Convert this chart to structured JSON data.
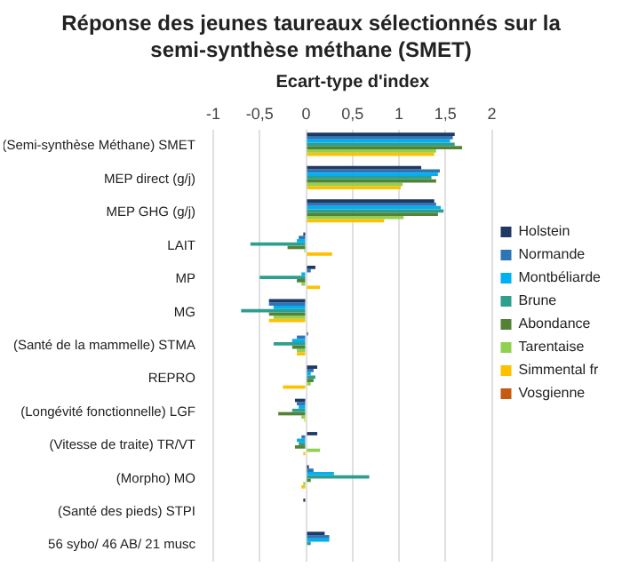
{
  "chart_data": {
    "type": "bar",
    "orientation": "horizontal",
    "title": "Réponse des jeunes taureaux sélectionnés sur la semi-synthèse méthane (SMET)",
    "xlabel": "Ecart-type d'index",
    "categories": [
      "(Semi-synthèse Méthane) SMET",
      "MEP direct (g/j)",
      "MEP GHG (g/j)",
      "LAIT",
      "MP",
      "MG",
      "(Santé de la mammelle) STMA",
      "REPRO",
      "(Longévité fonctionnelle) LGF",
      "(Vitesse de traite) TR/VT",
      "(Morpho) MO",
      "(Santé des pieds) STPI",
      "56 sybo/ 46 AB/ 21 musc"
    ],
    "xlim": [
      -1,
      2
    ],
    "xticks": [
      -1,
      {
        "value": -0.5,
        "label": "-0,5"
      },
      0,
      {
        "value": 0.5,
        "label": "0,5"
      },
      1,
      {
        "value": 1.5,
        "label": "1,5"
      },
      2
    ],
    "grid": "x",
    "legend": "right",
    "series": [
      {
        "name": "Holstein",
        "color": "#1f3864",
        "values": [
          1.6,
          1.24,
          1.38,
          -0.03,
          0.1,
          -0.4,
          0.02,
          0.12,
          -0.12,
          0.12,
          0.03,
          -0.03,
          0.2
        ]
      },
      {
        "name": "Normande",
        "color": "#2e75b6",
        "values": [
          1.58,
          1.44,
          1.4,
          -0.08,
          0.05,
          -0.4,
          -0.1,
          0.08,
          -0.1,
          -0.05,
          0.08,
          null,
          0.25
        ]
      },
      {
        "name": "Montbéliarde",
        "color": "#00b0f0",
        "values": [
          1.55,
          1.42,
          1.45,
          -0.1,
          -0.05,
          -0.35,
          -0.15,
          0.05,
          -0.08,
          -0.1,
          0.3,
          null,
          0.25
        ]
      },
      {
        "name": "Brune",
        "color": "#2e9e8f",
        "values": [
          1.6,
          1.35,
          1.48,
          -0.6,
          -0.5,
          -0.7,
          -0.35,
          0.1,
          -0.15,
          -0.08,
          0.68,
          null,
          0.05
        ]
      },
      {
        "name": "Abondance",
        "color": "#548235",
        "values": [
          1.68,
          1.4,
          1.42,
          -0.2,
          -0.1,
          -0.4,
          -0.15,
          0.08,
          -0.3,
          -0.12,
          0.05,
          null,
          null
        ]
      },
      {
        "name": "Tarentaise",
        "color": "#92d050",
        "values": [
          1.4,
          1.04,
          1.05,
          -0.02,
          -0.05,
          -0.35,
          -0.1,
          0.05,
          -0.05,
          0.15,
          -0.03,
          null,
          null
        ]
      },
      {
        "name": "Simmental fr",
        "color": "#ffc000",
        "values": [
          1.38,
          1.02,
          0.84,
          0.28,
          0.15,
          -0.4,
          -0.1,
          -0.25,
          -0.02,
          -0.03,
          -0.05,
          null,
          null
        ]
      },
      {
        "name": "Vosgienne",
        "color": "#c55a11",
        "values": [
          null,
          null,
          null,
          null,
          null,
          null,
          null,
          null,
          null,
          null,
          null,
          null,
          null
        ]
      }
    ]
  }
}
